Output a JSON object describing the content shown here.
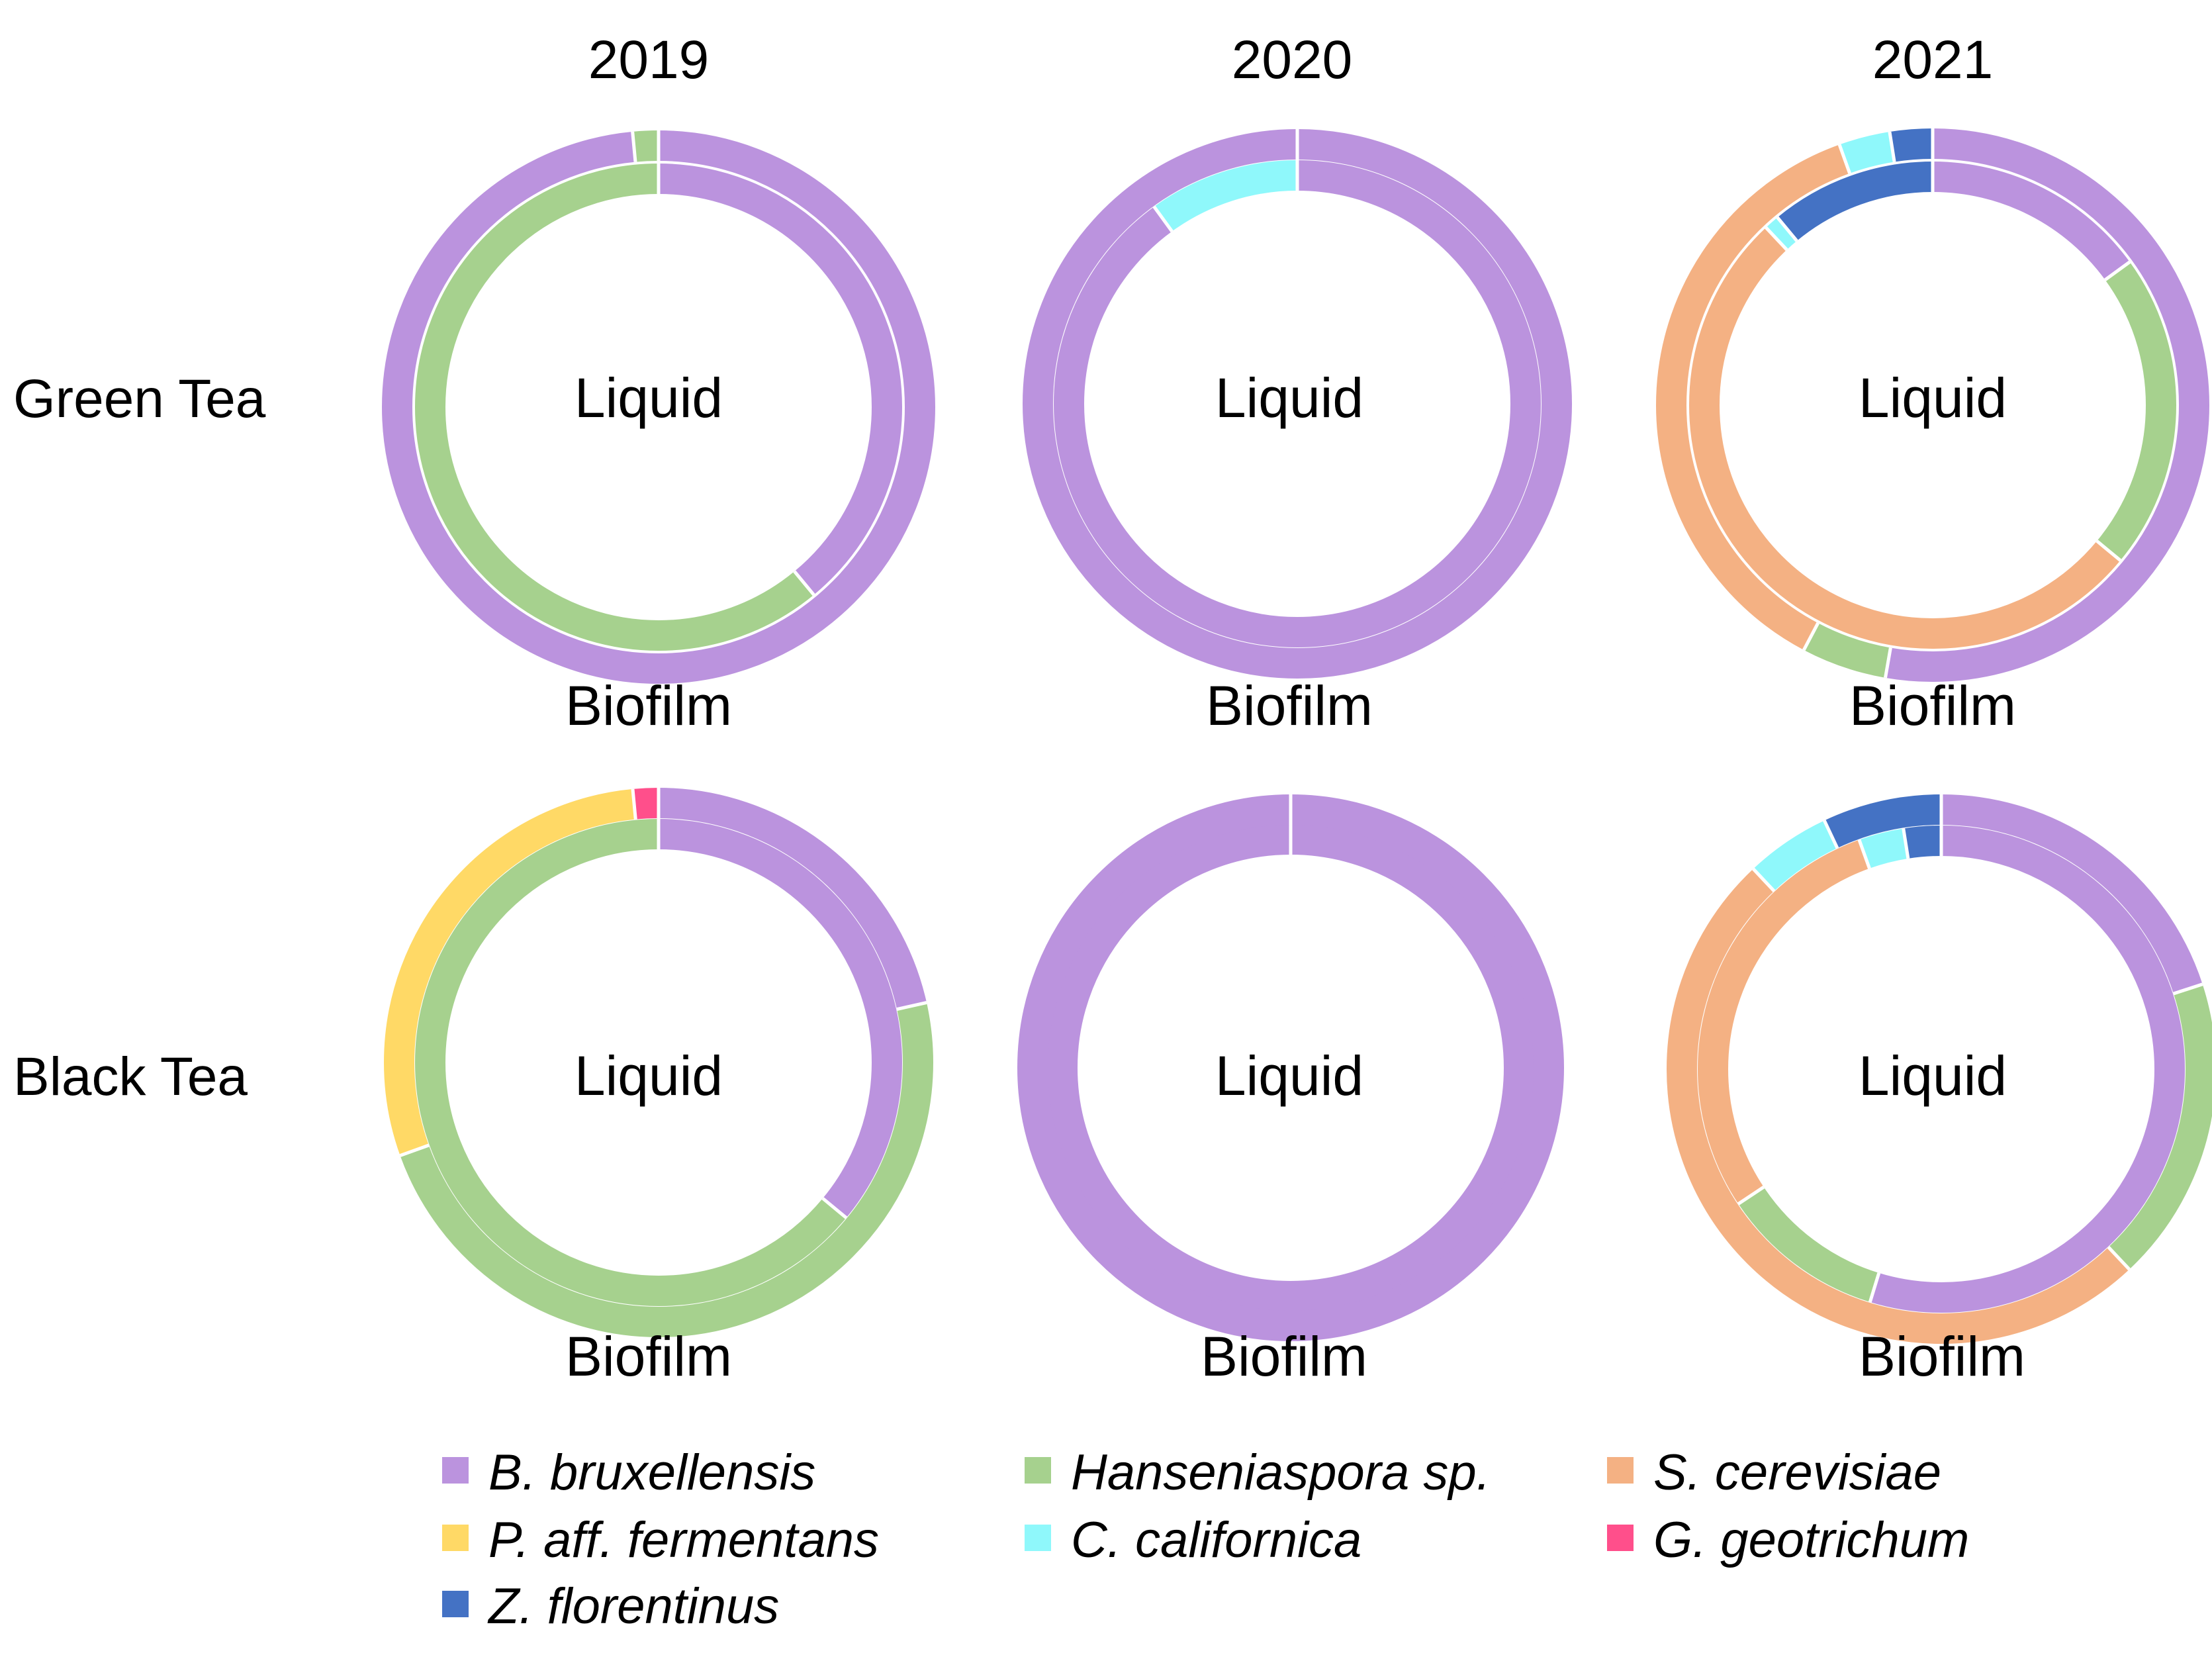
{
  "chart_data": {
    "type": "nested-donut",
    "years": [
      "2019",
      "2020",
      "2021"
    ],
    "rows": [
      "Green Tea",
      "Black Tea"
    ],
    "inner_ring_label": "Liquid",
    "outer_ring_label": "Biofilm",
    "unit": "relative abundance (%)",
    "species": [
      {
        "key": "bbru",
        "name": "B. bruxellensis",
        "color": "#bb93de"
      },
      {
        "key": "hans",
        "name": "Hanseniaspora sp.",
        "color": "#a6d18e"
      },
      {
        "key": "scer",
        "name": "S. cerevisiae",
        "color": "#f4b183"
      },
      {
        "key": "pfer",
        "name": "P. aff. fermentans",
        "color": "#ffd966"
      },
      {
        "key": "ccal",
        "name": "C. californica",
        "color": "#8ff8fb"
      },
      {
        "key": "ggeo",
        "name": "G. geotrichum",
        "color": "#ff4f8b"
      },
      {
        "key": "zflo",
        "name": "Z. florentinus",
        "color": "#4472c4"
      }
    ],
    "panels": [
      {
        "row": "Green Tea",
        "year": "2019",
        "liquid": [
          {
            "species": "bbru",
            "value": 39
          },
          {
            "species": "hans",
            "value": 61
          }
        ],
        "biofilm": [
          {
            "species": "bbru",
            "value": 98.5
          },
          {
            "species": "hans",
            "value": 1.5
          }
        ]
      },
      {
        "row": "Green Tea",
        "year": "2020",
        "liquid": [
          {
            "species": "bbru",
            "value": 90
          },
          {
            "species": "ccal",
            "value": 10
          }
        ],
        "biofilm": [
          {
            "species": "bbru",
            "value": 100
          }
        ]
      },
      {
        "row": "Green Tea",
        "year": "2021",
        "liquid": [
          {
            "species": "bbru",
            "value": 15
          },
          {
            "species": "hans",
            "value": 21
          },
          {
            "species": "scer",
            "value": 52
          },
          {
            "species": "ccal",
            "value": 1
          },
          {
            "species": "zflo",
            "value": 11
          }
        ],
        "biofilm": [
          {
            "species": "bbru",
            "value": 53
          },
          {
            "species": "hans",
            "value": 5
          },
          {
            "species": "scer",
            "value": 37
          },
          {
            "species": "ccal",
            "value": 3
          },
          {
            "species": "zflo",
            "value": 2.5
          }
        ]
      },
      {
        "row": "Black Tea",
        "year": "2019",
        "liquid": [
          {
            "species": "bbru",
            "value": 36
          },
          {
            "species": "hans",
            "value": 64
          }
        ],
        "biofilm": [
          {
            "species": "bbru",
            "value": 21.5
          },
          {
            "species": "hans",
            "value": 48
          },
          {
            "species": "pfer",
            "value": 29
          },
          {
            "species": "ggeo",
            "value": 1.5
          }
        ]
      },
      {
        "row": "Black Tea",
        "year": "2020",
        "liquid": [
          {
            "species": "bbru",
            "value": 100
          }
        ],
        "biofilm": [
          {
            "species": "bbru",
            "value": 100
          }
        ]
      },
      {
        "row": "Black Tea",
        "year": "2021",
        "liquid": [
          {
            "species": "bbru",
            "value": 55
          },
          {
            "species": "hans",
            "value": 11
          },
          {
            "species": "scer",
            "value": 29
          },
          {
            "species": "ccal",
            "value": 3
          },
          {
            "species": "zflo",
            "value": 2.5
          }
        ],
        "biofilm": [
          {
            "species": "bbru",
            "value": 20
          },
          {
            "species": "hans",
            "value": 18
          },
          {
            "species": "scer",
            "value": 50
          },
          {
            "species": "ccal",
            "value": 5
          },
          {
            "species": "zflo",
            "value": 7
          }
        ]
      }
    ]
  }
}
